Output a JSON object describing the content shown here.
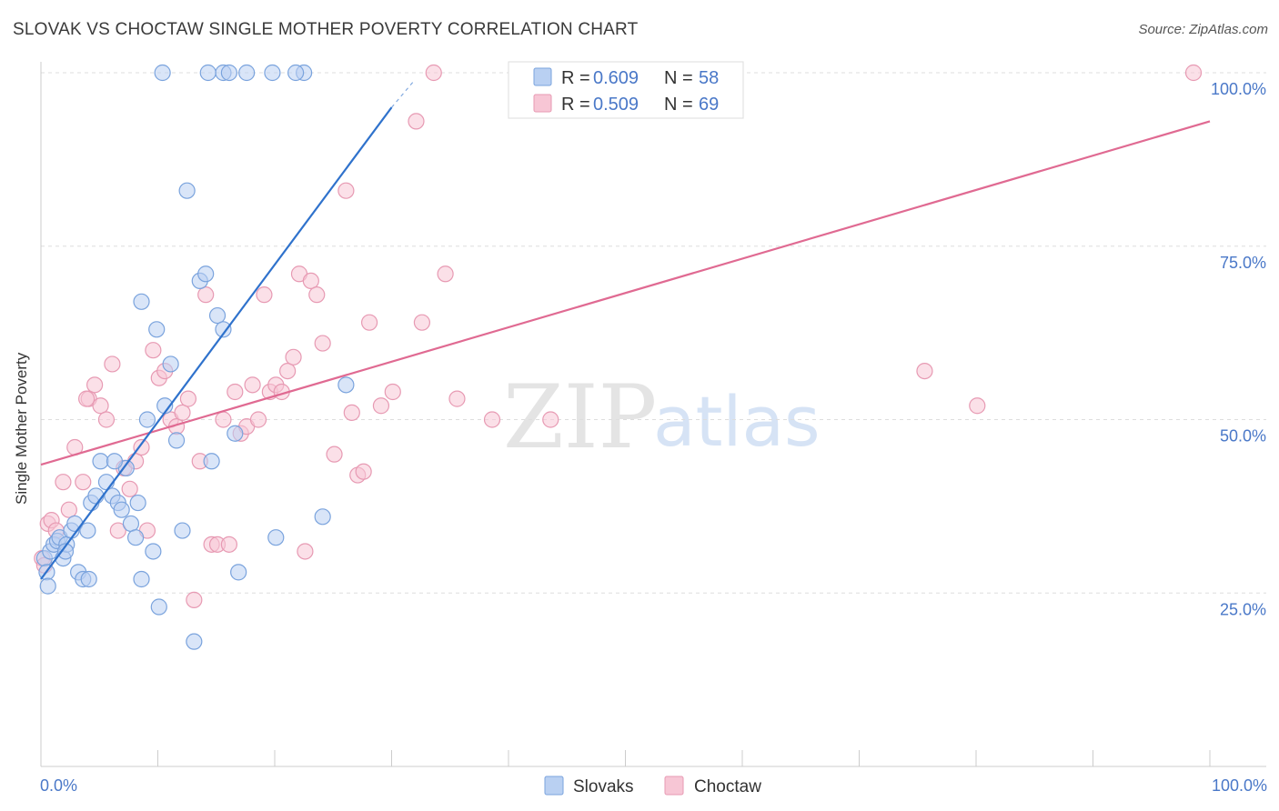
{
  "title": "SLOVAK VS CHOCTAW SINGLE MOTHER POVERTY CORRELATION CHART",
  "source": "Source: ZipAtlas.com",
  "watermark": {
    "zip": "ZIP",
    "atlas": "atlas"
  },
  "colors": {
    "slovaks_fill": "#b9d0f2",
    "slovaks_stroke": "#7aa3dd",
    "slovaks_line": "#2f72cc",
    "choctaw_fill": "#f7c6d5",
    "choctaw_stroke": "#e79ab3",
    "choctaw_line": "#e06a92",
    "axis_label": "#4a78c8"
  },
  "legend": {
    "slovaks": {
      "r_label": "R = ",
      "r_value": "0.609",
      "n_label": "N = ",
      "n_value": "58"
    },
    "choctaw": {
      "r_label": "R = ",
      "r_value": "0.509",
      "n_label": "N = ",
      "n_value": "69"
    }
  },
  "chart_data": {
    "type": "scatter",
    "title": "SLOVAK VS CHOCTAW SINGLE MOTHER POVERTY CORRELATION CHART",
    "xlabel": "",
    "ylabel": "Single Mother Poverty",
    "xlim": [
      0,
      100
    ],
    "ylim": [
      0,
      100
    ],
    "x_tick_labels": [
      "0.0%",
      "100.0%"
    ],
    "y_ticks": [
      25,
      50,
      75,
      100
    ],
    "y_tick_labels": [
      "25.0%",
      "50.0%",
      "75.0%",
      "100.0%"
    ],
    "grid": true,
    "legend_position": "top-center",
    "series": [
      {
        "name": "Slovaks",
        "r": 0.609,
        "n": 58,
        "trend": {
          "x": [
            0,
            30
          ],
          "y": [
            27,
            95
          ],
          "dashed_to": [
            32,
            99
          ]
        },
        "points": [
          [
            0.3,
            30
          ],
          [
            0.5,
            28
          ],
          [
            0.6,
            26
          ],
          [
            0.8,
            31
          ],
          [
            1.1,
            32
          ],
          [
            1.4,
            32.5
          ],
          [
            1.6,
            33
          ],
          [
            1.9,
            30
          ],
          [
            2.2,
            32
          ],
          [
            2.6,
            34
          ],
          [
            2.9,
            35
          ],
          [
            3.2,
            28
          ],
          [
            3.6,
            27
          ],
          [
            4.0,
            34
          ],
          [
            4.3,
            38
          ],
          [
            4.7,
            39
          ],
          [
            5.1,
            44
          ],
          [
            5.6,
            41
          ],
          [
            6.1,
            39
          ],
          [
            6.6,
            38
          ],
          [
            6.9,
            37
          ],
          [
            7.3,
            43
          ],
          [
            7.7,
            35
          ],
          [
            8.1,
            33
          ],
          [
            8.6,
            27
          ],
          [
            9.6,
            31
          ],
          [
            10.1,
            23
          ],
          [
            8.3,
            38
          ],
          [
            9.1,
            50
          ],
          [
            10.6,
            52
          ],
          [
            11.1,
            58
          ],
          [
            11.6,
            47
          ],
          [
            12.1,
            34
          ],
          [
            12.5,
            83
          ],
          [
            13.1,
            18
          ],
          [
            13.6,
            70
          ],
          [
            14.1,
            71
          ],
          [
            14.6,
            44
          ],
          [
            15.1,
            65
          ],
          [
            15.6,
            63
          ],
          [
            16.6,
            48
          ],
          [
            16.9,
            28
          ],
          [
            17.6,
            100
          ],
          [
            20.1,
            33
          ],
          [
            22.5,
            100
          ],
          [
            24.1,
            36
          ],
          [
            26.1,
            55
          ],
          [
            8.6,
            67
          ],
          [
            9.9,
            63
          ],
          [
            10.4,
            100
          ],
          [
            14.3,
            100
          ],
          [
            15.6,
            100
          ],
          [
            16.1,
            100
          ],
          [
            19.8,
            100
          ],
          [
            21.8,
            100
          ],
          [
            6.3,
            44
          ],
          [
            4.1,
            27
          ],
          [
            2.1,
            31
          ]
        ]
      },
      {
        "name": "Choctaw",
        "r": 0.509,
        "n": 69,
        "trend": {
          "x": [
            0,
            100
          ],
          "y": [
            43.5,
            93
          ]
        },
        "points": [
          [
            0.1,
            30
          ],
          [
            0.3,
            29
          ],
          [
            0.6,
            35
          ],
          [
            0.9,
            35.5
          ],
          [
            1.3,
            34
          ],
          [
            1.9,
            41
          ],
          [
            2.4,
            37
          ],
          [
            2.9,
            46
          ],
          [
            3.6,
            41
          ],
          [
            4.1,
            53
          ],
          [
            4.6,
            55
          ],
          [
            5.1,
            52
          ],
          [
            5.6,
            50
          ],
          [
            6.1,
            58
          ],
          [
            6.6,
            34
          ],
          [
            7.1,
            43
          ],
          [
            7.6,
            40
          ],
          [
            8.1,
            44
          ],
          [
            8.6,
            46
          ],
          [
            9.1,
            34
          ],
          [
            9.6,
            60
          ],
          [
            10.1,
            56
          ],
          [
            10.6,
            57
          ],
          [
            11.1,
            50
          ],
          [
            11.6,
            49
          ],
          [
            12.1,
            51
          ],
          [
            12.6,
            53
          ],
          [
            13.1,
            24
          ],
          [
            13.6,
            44
          ],
          [
            14.1,
            68
          ],
          [
            14.6,
            32
          ],
          [
            15.1,
            32
          ],
          [
            15.6,
            50
          ],
          [
            16.1,
            32
          ],
          [
            16.6,
            54
          ],
          [
            17.1,
            48
          ],
          [
            17.6,
            49
          ],
          [
            18.1,
            55
          ],
          [
            18.6,
            50
          ],
          [
            19.1,
            68
          ],
          [
            19.6,
            54
          ],
          [
            20.1,
            55
          ],
          [
            20.6,
            54
          ],
          [
            21.1,
            57
          ],
          [
            21.6,
            59
          ],
          [
            22.1,
            71
          ],
          [
            22.6,
            31
          ],
          [
            23.1,
            70
          ],
          [
            23.6,
            68
          ],
          [
            24.1,
            61
          ],
          [
            25.1,
            45
          ],
          [
            26.1,
            83
          ],
          [
            26.6,
            51
          ],
          [
            27.1,
            42
          ],
          [
            27.6,
            42.5
          ],
          [
            28.1,
            64
          ],
          [
            29.1,
            52
          ],
          [
            30.1,
            54
          ],
          [
            32.1,
            93
          ],
          [
            32.6,
            64
          ],
          [
            33.6,
            100
          ],
          [
            34.6,
            71
          ],
          [
            35.6,
            53
          ],
          [
            38.6,
            50
          ],
          [
            43.6,
            50
          ],
          [
            75.6,
            57
          ],
          [
            80.1,
            52
          ],
          [
            98.6,
            100
          ],
          [
            3.9,
            53
          ]
        ]
      }
    ]
  },
  "bottom_legend": {
    "slovaks": "Slovaks",
    "choctaw": "Choctaw"
  }
}
